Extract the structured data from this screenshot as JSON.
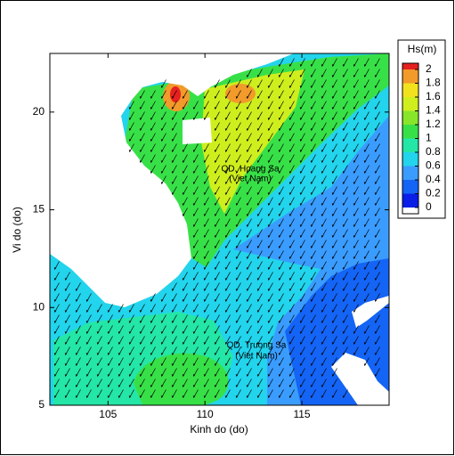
{
  "chart_data": {
    "type": "contour",
    "x_label": "Kinh do (do)",
    "y_label": "Vi do (do)",
    "xlim": [
      102,
      119.5
    ],
    "ylim": [
      5,
      23
    ],
    "xticks": [
      105,
      110,
      115
    ],
    "yticks": [
      5,
      10,
      15,
      20
    ],
    "colorbar": {
      "title": "Hs(m)",
      "ticks": [
        0,
        0.2,
        0.4,
        0.6,
        0.8,
        1,
        1.2,
        1.4,
        1.6,
        1.8,
        2
      ],
      "colors": [
        "#0a1ee8",
        "#1464f5",
        "#3a9cff",
        "#22d4ec",
        "#24e6a6",
        "#38e048",
        "#88e62a",
        "#cfee1e",
        "#f2e21e",
        "#f29a2a",
        "#e62020"
      ]
    },
    "annotations": [
      "QD. Hoang Sa",
      "(Viet Nam)",
      "QD. Truong Sa",
      "(Viet Nam)"
    ]
  }
}
